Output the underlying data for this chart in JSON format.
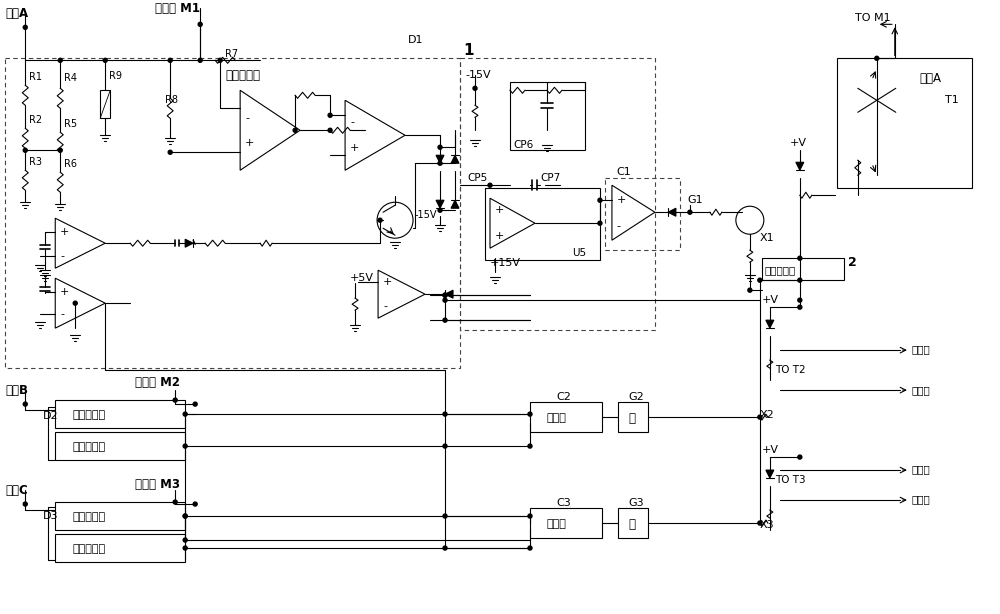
{
  "figsize": [
    10.0,
    6.14
  ],
  "dpi": 100,
  "bg": "#ffffff",
  "lc": "#000000",
  "labels": {
    "phase_a_top": "相线A",
    "motor_m1": "电机线 M1",
    "phase_detector_label": "相位检测器",
    "D1": "D1",
    "num1": "1",
    "minus15v": "-15V",
    "CP6": "CP6",
    "CP5": "CP5",
    "CP7": "CP7",
    "U5": "U5",
    "plus15v": "+15V",
    "C1": "C1",
    "G1": "G1",
    "plus5v": "+5V",
    "TO_M1": "TO M1",
    "T1": "T1",
    "phase_a_right": "相线A",
    "high_freq": "高频振荡器",
    "num2": "2",
    "plusV": "+V",
    "TO_T2": "TO T2",
    "TO_T3": "TO T3",
    "gate_label": "到门极",
    "cathode_label": "到阴极",
    "X1": "X1",
    "X2": "X2",
    "X3": "X3",
    "phase_b": "相线B",
    "motor_m2": "电机线 M2",
    "D2": "D2",
    "phase_det_b": "相位检测器",
    "slope_gen_b": "斜坡发生器",
    "phase_c": "相线C",
    "motor_m3": "电机线 M3",
    "D3": "D3",
    "phase_det_c": "相位检测器",
    "slope_gen_c": "斜坡发生器",
    "comparator": "比较器",
    "gate_box": "门",
    "C2": "C2",
    "C3": "C3",
    "G2": "G2",
    "G3": "G3",
    "R1": "R1",
    "R2": "R2",
    "R3": "R3",
    "R4": "R4",
    "R5": "R5",
    "R6": "R6",
    "R7": "R7",
    "R8": "R8",
    "R9": "R9",
    "minus15v_b": "-15V"
  }
}
